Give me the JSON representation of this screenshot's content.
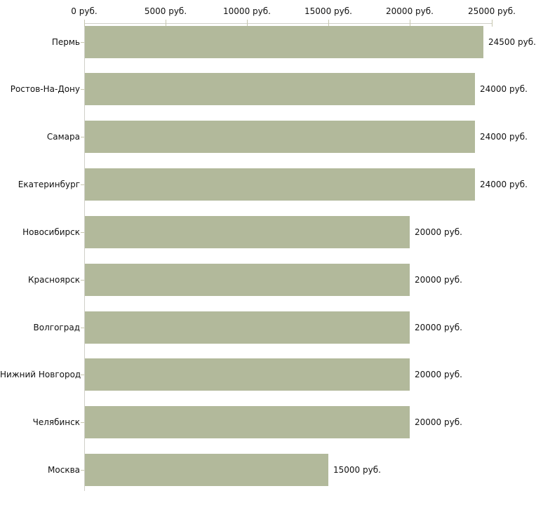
{
  "chart_data": {
    "type": "bar",
    "orientation": "horizontal",
    "title": "",
    "xlabel": "",
    "ylabel": "",
    "unit": "руб.",
    "categories": [
      "Пермь",
      "Ростов-На-Дону",
      "Самара",
      "Екатеринбург",
      "Новосибирск",
      "Красноярск",
      "Волгоград",
      "Нижний Новгород",
      "Челябинск",
      "Москва"
    ],
    "values": [
      24500,
      24000,
      24000,
      24000,
      20000,
      20000,
      20000,
      20000,
      20000,
      15000
    ],
    "value_labels": [
      "24500 руб.",
      "24000 руб.",
      "24000 руб.",
      "24000 руб.",
      "20000 руб.",
      "20000 руб.",
      "20000 руб.",
      "20000 руб.",
      "20000 руб.",
      "15000 руб."
    ],
    "xlim": [
      0,
      25000
    ],
    "x_ticks": [
      {
        "value": 0,
        "label": "0 руб."
      },
      {
        "value": 5000,
        "label": "5000 руб."
      },
      {
        "value": 10000,
        "label": "10000 руб."
      },
      {
        "value": 15000,
        "label": "15000 руб."
      },
      {
        "value": 20000,
        "label": "20000 руб."
      },
      {
        "value": 25000,
        "label": "25000 руб."
      }
    ],
    "axis_position": "top",
    "grid": false,
    "legend": false,
    "colors": {
      "bar": "#b2b99b",
      "axis_line": "#d0d0c8",
      "tick": "#c6c6ae",
      "text": "#111111",
      "background": "#ffffff"
    }
  }
}
